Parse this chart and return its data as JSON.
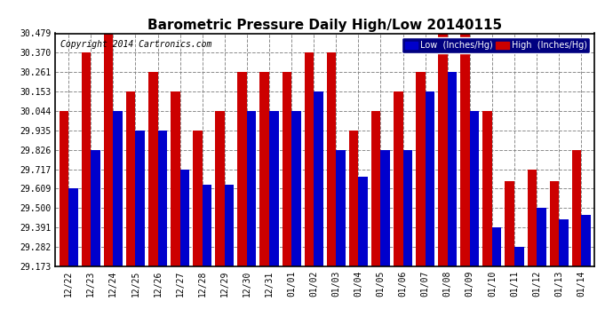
{
  "title": "Barometric Pressure Daily High/Low 20140115",
  "copyright": "Copyright 2014 Cartronics.com",
  "legend_low": "Low  (Inches/Hg)",
  "legend_high": "High  (Inches/Hg)",
  "low_color": "#0000cc",
  "high_color": "#cc0000",
  "bg_color": "#000080",
  "plot_bg": "#ffffff",
  "yticks": [
    29.173,
    29.282,
    29.391,
    29.5,
    29.609,
    29.717,
    29.826,
    29.935,
    30.044,
    30.153,
    30.261,
    30.37,
    30.479
  ],
  "ylim": [
    29.173,
    30.479
  ],
  "categories": [
    "12/22",
    "12/23",
    "12/24",
    "12/25",
    "12/26",
    "12/27",
    "12/28",
    "12/29",
    "12/30",
    "12/31",
    "01/01",
    "01/02",
    "01/03",
    "01/04",
    "01/05",
    "01/06",
    "01/07",
    "01/08",
    "01/09",
    "01/10",
    "01/11",
    "01/12",
    "01/13",
    "01/14"
  ],
  "high_values": [
    30.044,
    30.37,
    30.479,
    30.153,
    30.261,
    30.153,
    29.935,
    30.044,
    30.261,
    30.261,
    30.261,
    30.37,
    30.37,
    29.935,
    30.044,
    30.153,
    30.261,
    30.479,
    30.479,
    30.044,
    29.65,
    29.717,
    29.65,
    29.826
  ],
  "low_values": [
    29.609,
    29.826,
    30.044,
    29.935,
    29.935,
    29.717,
    29.63,
    29.63,
    30.044,
    30.044,
    30.044,
    30.153,
    29.826,
    29.675,
    29.826,
    29.826,
    30.153,
    30.261,
    30.044,
    29.391,
    29.282,
    29.5,
    29.435,
    29.46
  ]
}
